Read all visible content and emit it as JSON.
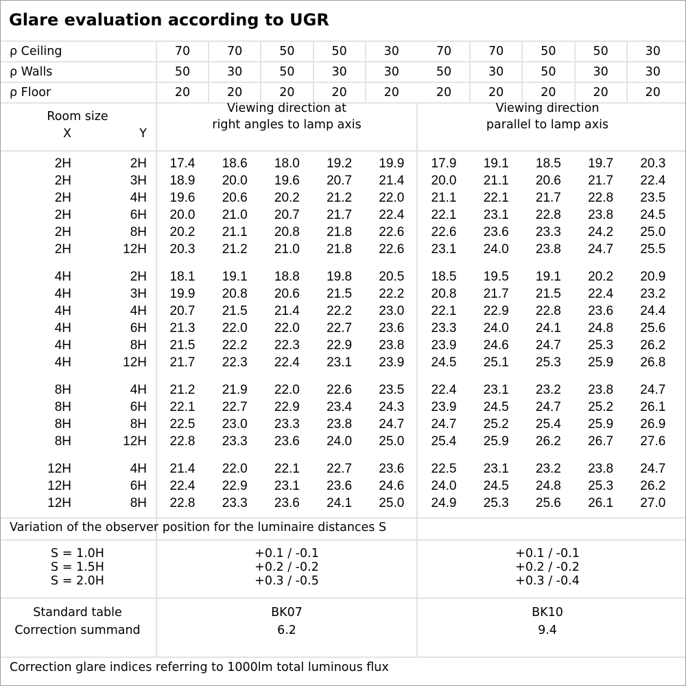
{
  "title": "Glare evaluation according to UGR",
  "reflectances": [
    {
      "label": "ρ Ceiling",
      "values": [
        "70",
        "70",
        "50",
        "50",
        "30",
        "70",
        "70",
        "50",
        "50",
        "30"
      ]
    },
    {
      "label": "ρ Walls",
      "values": [
        "50",
        "30",
        "50",
        "30",
        "30",
        "50",
        "30",
        "50",
        "30",
        "30"
      ]
    },
    {
      "label": "ρ Floor",
      "values": [
        "20",
        "20",
        "20",
        "20",
        "20",
        "20",
        "20",
        "20",
        "20",
        "20"
      ]
    }
  ],
  "room_size": {
    "label": "Room size",
    "x_label": "X",
    "y_label": "Y"
  },
  "directions": [
    {
      "line1": "Viewing direction at",
      "line2": "right angles to lamp axis"
    },
    {
      "line1": "Viewing direction",
      "line2": "parallel to lamp axis"
    }
  ],
  "groups": [
    {
      "rows": [
        {
          "x": "2H",
          "y": "2H",
          "values": [
            "17.4",
            "18.6",
            "18.0",
            "19.2",
            "19.9",
            "17.9",
            "19.1",
            "18.5",
            "19.7",
            "20.3"
          ]
        },
        {
          "x": "2H",
          "y": "3H",
          "values": [
            "18.9",
            "20.0",
            "19.6",
            "20.7",
            "21.4",
            "20.0",
            "21.1",
            "20.6",
            "21.7",
            "22.4"
          ]
        },
        {
          "x": "2H",
          "y": "4H",
          "values": [
            "19.6",
            "20.6",
            "20.2",
            "21.2",
            "22.0",
            "21.1",
            "22.1",
            "21.7",
            "22.8",
            "23.5"
          ]
        },
        {
          "x": "2H",
          "y": "6H",
          "values": [
            "20.0",
            "21.0",
            "20.7",
            "21.7",
            "22.4",
            "22.1",
            "23.1",
            "22.8",
            "23.8",
            "24.5"
          ]
        },
        {
          "x": "2H",
          "y": "8H",
          "values": [
            "20.2",
            "21.1",
            "20.8",
            "21.8",
            "22.6",
            "22.6",
            "23.6",
            "23.3",
            "24.2",
            "25.0"
          ]
        },
        {
          "x": "2H",
          "y": "12H",
          "values": [
            "20.3",
            "21.2",
            "21.0",
            "21.8",
            "22.6",
            "23.1",
            "24.0",
            "23.8",
            "24.7",
            "25.5"
          ]
        }
      ]
    },
    {
      "rows": [
        {
          "x": "4H",
          "y": "2H",
          "values": [
            "18.1",
            "19.1",
            "18.8",
            "19.8",
            "20.5",
            "18.5",
            "19.5",
            "19.1",
            "20.2",
            "20.9"
          ]
        },
        {
          "x": "4H",
          "y": "3H",
          "values": [
            "19.9",
            "20.8",
            "20.6",
            "21.5",
            "22.2",
            "20.8",
            "21.7",
            "21.5",
            "22.4",
            "23.2"
          ]
        },
        {
          "x": "4H",
          "y": "4H",
          "values": [
            "20.7",
            "21.5",
            "21.4",
            "22.2",
            "23.0",
            "22.1",
            "22.9",
            "22.8",
            "23.6",
            "24.4"
          ]
        },
        {
          "x": "4H",
          "y": "6H",
          "values": [
            "21.3",
            "22.0",
            "22.0",
            "22.7",
            "23.6",
            "23.3",
            "24.0",
            "24.1",
            "24.8",
            "25.6"
          ]
        },
        {
          "x": "4H",
          "y": "8H",
          "values": [
            "21.5",
            "22.2",
            "22.3",
            "22.9",
            "23.8",
            "23.9",
            "24.6",
            "24.7",
            "25.3",
            "26.2"
          ]
        },
        {
          "x": "4H",
          "y": "12H",
          "values": [
            "21.7",
            "22.3",
            "22.4",
            "23.1",
            "23.9",
            "24.5",
            "25.1",
            "25.3",
            "25.9",
            "26.8"
          ]
        }
      ]
    },
    {
      "rows": [
        {
          "x": "8H",
          "y": "4H",
          "values": [
            "21.2",
            "21.9",
            "22.0",
            "22.6",
            "23.5",
            "22.4",
            "23.1",
            "23.2",
            "23.8",
            "24.7"
          ]
        },
        {
          "x": "8H",
          "y": "6H",
          "values": [
            "22.1",
            "22.7",
            "22.9",
            "23.4",
            "24.3",
            "23.9",
            "24.5",
            "24.7",
            "25.2",
            "26.1"
          ]
        },
        {
          "x": "8H",
          "y": "8H",
          "values": [
            "22.5",
            "23.0",
            "23.3",
            "23.8",
            "24.7",
            "24.7",
            "25.2",
            "25.4",
            "25.9",
            "26.9"
          ]
        },
        {
          "x": "8H",
          "y": "12H",
          "values": [
            "22.8",
            "23.3",
            "23.6",
            "24.0",
            "25.0",
            "25.4",
            "25.9",
            "26.2",
            "26.7",
            "27.6"
          ]
        }
      ]
    },
    {
      "rows": [
        {
          "x": "12H",
          "y": "4H",
          "values": [
            "21.4",
            "22.0",
            "22.1",
            "22.7",
            "23.6",
            "22.5",
            "23.1",
            "23.2",
            "23.8",
            "24.7"
          ]
        },
        {
          "x": "12H",
          "y": "6H",
          "values": [
            "22.4",
            "22.9",
            "23.1",
            "23.6",
            "24.6",
            "24.0",
            "24.5",
            "24.8",
            "25.3",
            "26.2"
          ]
        },
        {
          "x": "12H",
          "y": "8H",
          "values": [
            "22.8",
            "23.3",
            "23.6",
            "24.1",
            "25.0",
            "24.9",
            "25.3",
            "25.6",
            "26.1",
            "27.0"
          ]
        }
      ]
    }
  ],
  "variation": {
    "label": "Variation of the observer position for the luminaire distances S",
    "rows": [
      {
        "s": "S = 1.0H",
        "right_angles": "+0.1 / -0.1",
        "parallel": "+0.1 / -0.1"
      },
      {
        "s": "S = 1.5H",
        "right_angles": "+0.2 / -0.2",
        "parallel": "+0.2 / -0.2"
      },
      {
        "s": "S = 2.0H",
        "right_angles": "+0.3 / -0.5",
        "parallel": "+0.3 / -0.4"
      }
    ]
  },
  "standard": {
    "table_label": "Standard table",
    "summand_label": "Correction summand",
    "right_angles": {
      "table": "BK07",
      "summand": "6.2"
    },
    "parallel": {
      "table": "BK10",
      "summand": "9.4"
    }
  },
  "footer": "Correction glare indices referring to 1000lm total luminous flux"
}
